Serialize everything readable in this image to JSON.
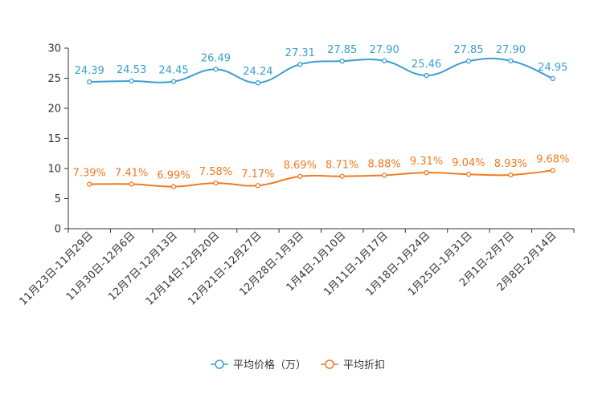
{
  "chart_data": {
    "type": "line",
    "title": "",
    "xlabel": "",
    "ylabel": "",
    "ylim": [
      0,
      30
    ],
    "yticks": [
      0,
      5,
      10,
      15,
      20,
      25,
      30
    ],
    "grid": false,
    "legend_position": "bottom-center",
    "categories": [
      "11月23日-11月29日",
      "11月30日-12月6日",
      "12月7日-12月13日",
      "12月14日-12月20日",
      "12月21日-12月27日",
      "12月28日-1月3日",
      "1月4日-1月10日",
      "1月11日-1月17日",
      "1月18日-1月24日",
      "1月25日-1月31日",
      "2月1日-2月7日",
      "2月8日-2月14日"
    ],
    "series": [
      {
        "name": "平均价格（万）",
        "color": "#3a9fd0",
        "values": [
          24.39,
          24.53,
          24.45,
          26.49,
          24.24,
          27.31,
          27.85,
          27.9,
          25.46,
          27.85,
          27.9,
          24.95
        ],
        "labels": [
          "24.39",
          "24.53",
          "24.45",
          "26.49",
          "24.24",
          "27.31",
          "27.85",
          "27.90",
          "25.46",
          "27.85",
          "27.90",
          "24.95"
        ]
      },
      {
        "name": "平均折扣",
        "color": "#f07b1f",
        "values": [
          7.39,
          7.41,
          6.99,
          7.58,
          7.17,
          8.69,
          8.71,
          8.88,
          9.31,
          9.04,
          8.93,
          9.68
        ],
        "labels": [
          "7.39%",
          "7.41%",
          "6.99%",
          "7.58%",
          "7.17%",
          "8.69%",
          "8.71%",
          "8.88%",
          "9.31%",
          "9.04%",
          "8.93%",
          "9.68%"
        ]
      }
    ]
  }
}
